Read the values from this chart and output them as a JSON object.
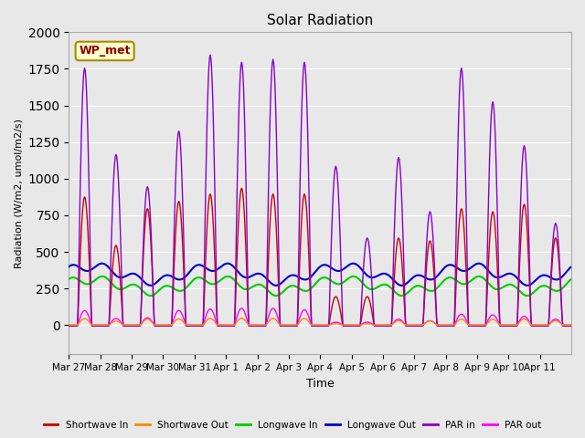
{
  "title": "Solar Radiation",
  "ylabel": "Radiation (W/m2, umol/m2/s)",
  "xlabel": "Time",
  "ylim": [
    -200,
    2000
  ],
  "background_color": "#e8e8e8",
  "legend_label": "WP_met",
  "x_tick_labels": [
    "Mar 27",
    "Mar 28",
    "Mar 29",
    "Mar 30",
    "Mar 31",
    "Apr 1",
    "Apr 2",
    "Apr 3",
    "Apr 4",
    "Apr 5",
    "Apr 6",
    "Apr 7",
    "Apr 8",
    "Apr 9",
    "Apr 10",
    "Apr 11"
  ],
  "series_colors": {
    "shortwave_in": "#cc0000",
    "shortwave_out": "#ff8800",
    "longwave_in": "#00cc00",
    "longwave_out": "#0000cc",
    "par_in": "#8800cc",
    "par_out": "#ff00ff"
  },
  "series_labels": [
    "Shortwave In",
    "Shortwave Out",
    "Longwave In",
    "Longwave Out",
    "PAR in",
    "PAR out"
  ],
  "sw_in_peaks": [
    880,
    550,
    800,
    850,
    900,
    940,
    900,
    900,
    200,
    200,
    600,
    580,
    800,
    780,
    830,
    600
  ],
  "par_in_peaks": [
    1760,
    1170,
    950,
    1330,
    1850,
    1800,
    1820,
    1800,
    1090,
    600,
    1150,
    780,
    1760,
    1530,
    1230,
    700
  ],
  "par_out_peaks": [
    100,
    45,
    50,
    100,
    110,
    115,
    115,
    105,
    20,
    20,
    40,
    30,
    75,
    70,
    60,
    40
  ],
  "lw_in_base": 270,
  "lw_out_base": 350,
  "n_days": 16,
  "pts_per_day": 48
}
